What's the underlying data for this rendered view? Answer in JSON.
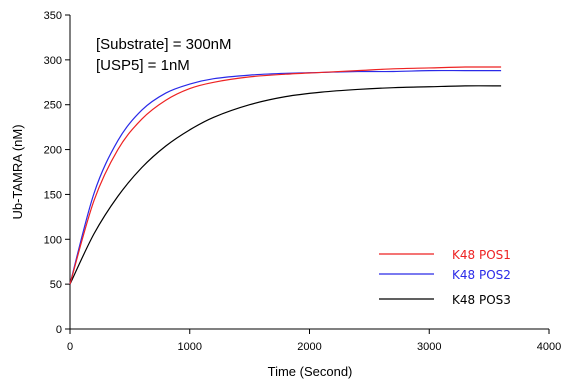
{
  "chart_data": {
    "type": "line",
    "title": "",
    "xlabel": "Time (Second)",
    "ylabel": "Ub-TAMRA (nM)",
    "xlim": [
      0,
      4000
    ],
    "ylim": [
      0,
      350
    ],
    "xticks": [
      0,
      1000,
      2000,
      3000,
      4000
    ],
    "yticks": [
      0,
      50,
      100,
      150,
      200,
      250,
      300,
      350
    ],
    "x_tick_labels": [
      "0",
      "1000",
      "2000",
      "3000",
      "4000"
    ],
    "y_tick_labels": [
      "0",
      "50",
      "100",
      "150",
      "200",
      "250",
      "300",
      "350"
    ],
    "grid": false,
    "legend_position": "bottom-right",
    "annotations": [
      "[Substrate] = 300nM",
      "[USP5] = 1nM"
    ],
    "x": [
      0,
      200,
      400,
      600,
      800,
      1000,
      1200,
      1500,
      1800,
      2100,
      2400,
      2700,
      3000,
      3300,
      3600
    ],
    "series": [
      {
        "name": "K48 POS1",
        "color": "#ee2222",
        "values": [
          50,
          143,
          200,
          234,
          255,
          268,
          275,
          281,
          284,
          286,
          288,
          290,
          291,
          292,
          292
        ]
      },
      {
        "name": "K48 POS2",
        "color": "#2a2ae8",
        "values": [
          50,
          151,
          210,
          244,
          263,
          273,
          279,
          283,
          285,
          286,
          287,
          287,
          288,
          288,
          288
        ]
      },
      {
        "name": "K48 POS3",
        "color": "#000000",
        "values": [
          50,
          106,
          148,
          180,
          204,
          222,
          236,
          250,
          259,
          264,
          267,
          269,
          270,
          271,
          271
        ]
      }
    ]
  }
}
